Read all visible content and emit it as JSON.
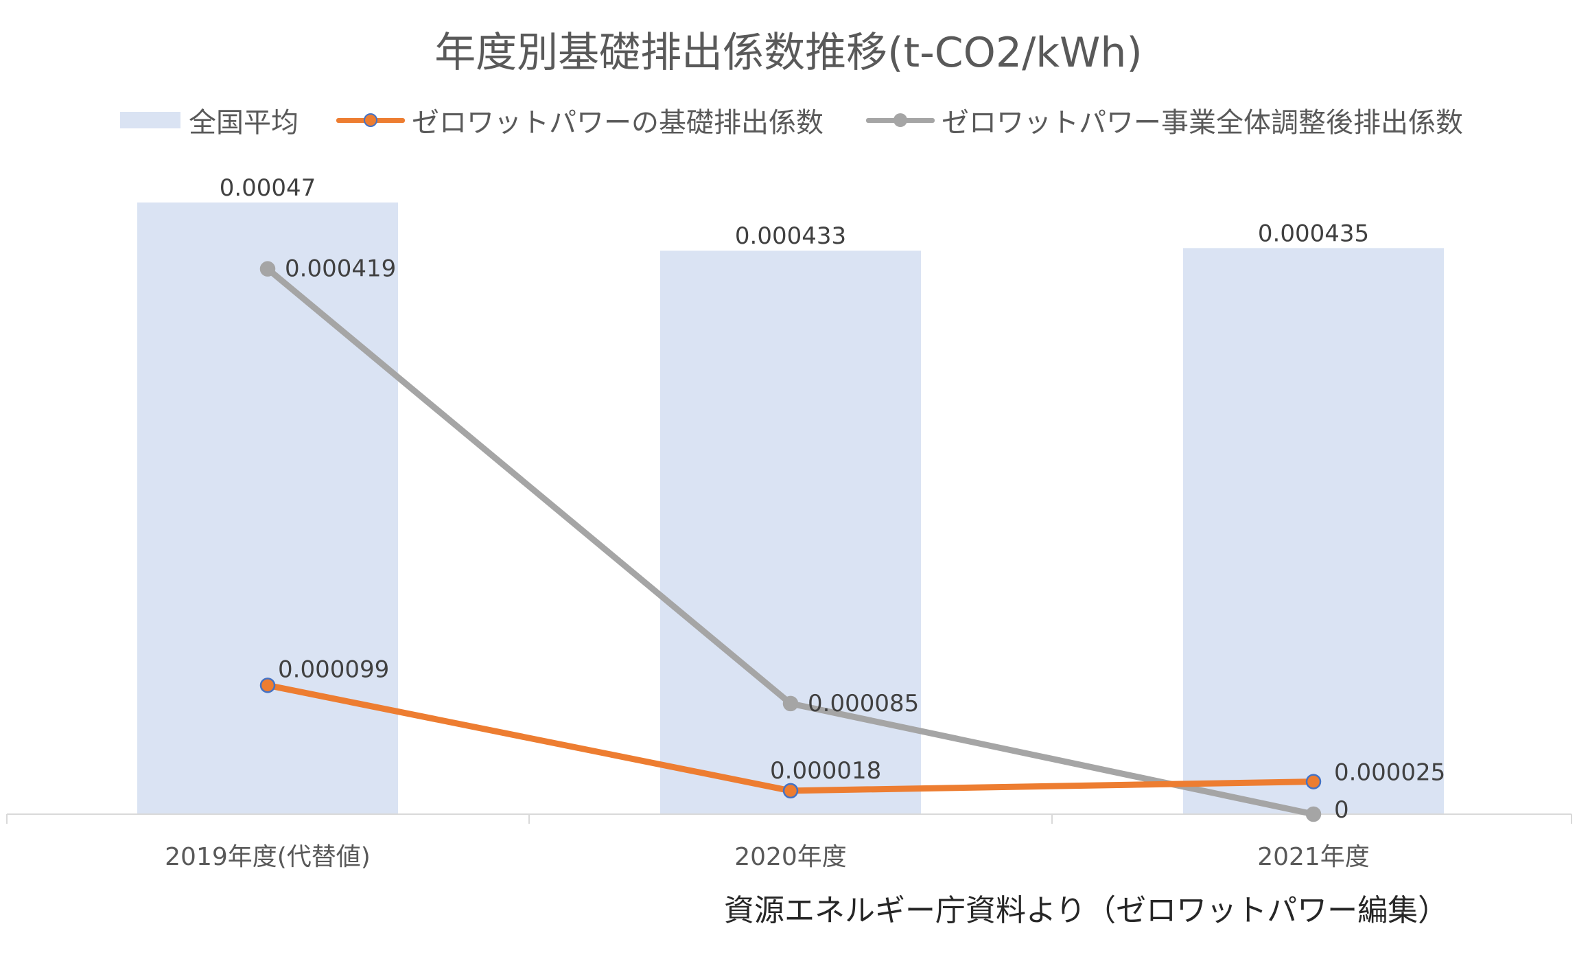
{
  "chart_data": {
    "type": "bar",
    "title": "年度別基礎排出係数推移(t-CO2/kWh)",
    "categories": [
      "2019年度(代替値)",
      "2020年度",
      "2021年度"
    ],
    "series": [
      {
        "name": "全国平均",
        "type": "bar",
        "color": "#dae3f3",
        "values": [
          0.00047,
          0.000433,
          0.000435
        ],
        "labels": [
          "0.00047",
          "0.000433",
          "0.000435"
        ]
      },
      {
        "name": "ゼロワットパワーの基礎排出係数",
        "type": "line",
        "color": "#ed7d31",
        "marker_edge": "#4472c4",
        "values": [
          9.9e-05,
          1.8e-05,
          2.5e-05
        ],
        "labels": [
          "0.000099",
          "0.000018",
          "0.000025"
        ]
      },
      {
        "name": "ゼロワットパワー事業全体調整後排出係数",
        "type": "line",
        "color": "#a5a5a5",
        "values": [
          0.000419,
          8.5e-05,
          0
        ],
        "labels": [
          "0.000419",
          "0.000085",
          "0"
        ]
      }
    ],
    "ylim": [
      0,
      0.00047
    ],
    "grid": false,
    "legend": "top"
  },
  "source_note": "資源エネルギー庁資料より（ゼロワットパワー編集）"
}
